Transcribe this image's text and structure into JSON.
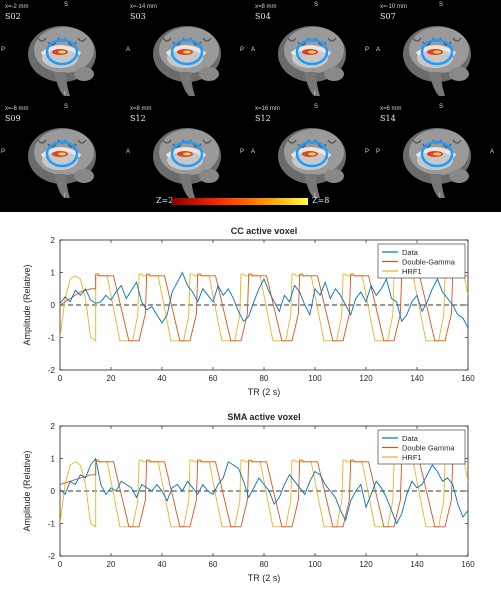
{
  "brain_panels": [
    {
      "coord": "x=-2 mm",
      "subject": "S02",
      "ori_left": "P",
      "ori_right": "",
      "ori_top": "S",
      "ori_bottom": "I"
    },
    {
      "coord": "x=-14 mm",
      "subject": "S03",
      "ori_left": "A",
      "ori_right": "P",
      "ori_top": "",
      "ori_bottom": ""
    },
    {
      "coord": "x=8 mm",
      "subject": "S04",
      "ori_left": "A",
      "ori_right": "P",
      "ori_top": "S",
      "ori_bottom": "I"
    },
    {
      "coord": "x=-10 mm",
      "subject": "S07",
      "ori_left": "A",
      "ori_right": "",
      "ori_top": "S",
      "ori_bottom": ""
    },
    {
      "coord": "x=-6 mm",
      "subject": "S09",
      "ori_left": "P",
      "ori_right": "",
      "ori_top": "S",
      "ori_bottom": "I"
    },
    {
      "coord": "x=8 mm",
      "subject": "S12",
      "ori_left": "A",
      "ori_right": "P",
      "ori_top": "",
      "ori_bottom": ""
    },
    {
      "coord": "x=16 mm",
      "subject": "S12",
      "ori_left": "A",
      "ori_right": "P",
      "ori_top": "S",
      "ori_bottom": "I"
    },
    {
      "coord": "x=6 mm",
      "subject": "S14",
      "ori_left": "P",
      "ori_right": "A",
      "ori_top": "S",
      "ori_bottom": "I"
    }
  ],
  "colorbar": {
    "min_label": "Z=2",
    "max_label": "Z=8",
    "colors": [
      "#8b0000",
      "#ff2a00",
      "#ff9900",
      "#ffff40"
    ]
  },
  "chart_data": [
    {
      "type": "line",
      "title": "CC active voxel",
      "xlabel": "TR (2 s)",
      "ylabel": "Amplitude (Relative)",
      "xlim": [
        0,
        160
      ],
      "ylim": [
        -2,
        2
      ],
      "xticks": [
        0,
        20,
        40,
        60,
        80,
        100,
        120,
        140,
        160
      ],
      "yticks": [
        -2,
        -1,
        0,
        1,
        2
      ],
      "legend_position": "top-right",
      "baseline": 0,
      "series": [
        {
          "name": "Data",
          "color": "#0072bd",
          "x": [
            0,
            2,
            4,
            6,
            8,
            10,
            12,
            14,
            16,
            18,
            20,
            22,
            24,
            26,
            28,
            30,
            32,
            34,
            36,
            38,
            40,
            42,
            44,
            46,
            48,
            50,
            52,
            54,
            56,
            58,
            60,
            62,
            64,
            66,
            68,
            70,
            72,
            74,
            76,
            78,
            80,
            82,
            84,
            86,
            88,
            90,
            92,
            94,
            96,
            98,
            100,
            102,
            104,
            106,
            108,
            110,
            112,
            114,
            116,
            118,
            120,
            122,
            124,
            126,
            128,
            130,
            132,
            134,
            136,
            138,
            140,
            142,
            144,
            146,
            148,
            150,
            152,
            154,
            156,
            158,
            160
          ],
          "y": [
            0.05,
            0.25,
            0.1,
            0.45,
            0.3,
            0.5,
            0.15,
            0.05,
            0.1,
            0.3,
            0.15,
            0.4,
            0.6,
            0.2,
            0.45,
            0.7,
            0.1,
            -0.15,
            -0.05,
            -0.3,
            -0.55,
            -0.3,
            0.4,
            0.7,
            1.0,
            0.6,
            0.4,
            0.1,
            0.5,
            0.3,
            0.1,
            0.6,
            0.3,
            0.5,
            0.2,
            -0.2,
            -0.5,
            -0.35,
            0.1,
            0.5,
            0.8,
            0.4,
            0.1,
            -0.2,
            0.3,
            0.1,
            0.6,
            0.4,
            0.0,
            -0.3,
            0.5,
            0.3,
            0.7,
            0.2,
            0.5,
            0.3,
            0.0,
            -0.3,
            0.2,
            0.4,
            0.1,
            0.6,
            0.3,
            0.5,
            0.8,
            0.2,
            0.1,
            -0.5,
            -0.3,
            0.1,
            0.3,
            -0.2,
            0.1,
            0.5,
            0.8,
            0.4,
            0.2,
            0.0,
            -0.3,
            -0.4,
            -0.7
          ]
        },
        {
          "name": "Double-Gamma",
          "color": "#d95319",
          "x": [
            0,
            2,
            4,
            6,
            8,
            10,
            12,
            14
          ],
          "y": [
            0.0,
            0.1,
            0.2,
            0.3,
            0.4,
            0.45,
            0.5,
            0.5
          ],
          "phase": 14,
          "lag": 6,
          "period": 20
        },
        {
          "name": "HRF1",
          "color": "#edb120",
          "x": [
            0,
            2,
            4,
            6,
            8,
            10,
            12,
            14
          ],
          "y": [
            -1.0,
            0.2,
            0.8,
            0.9,
            0.8,
            0.2,
            -1.0,
            -1.1
          ],
          "phase": 11,
          "lag": 5,
          "period": 20
        }
      ]
    },
    {
      "type": "line",
      "title": "SMA active voxel",
      "xlabel": "TR (2 s)",
      "ylabel": "Amplitude (Relative)",
      "xlim": [
        0,
        160
      ],
      "ylim": [
        -2,
        2
      ],
      "xticks": [
        0,
        20,
        40,
        60,
        80,
        100,
        120,
        140,
        160
      ],
      "yticks": [
        -2,
        -1,
        0,
        1,
        2
      ],
      "legend_position": "top-right",
      "baseline": 0,
      "series": [
        {
          "name": "Data",
          "color": "#0072bd",
          "x": [
            0,
            2,
            4,
            6,
            8,
            10,
            12,
            14,
            16,
            18,
            20,
            22,
            24,
            26,
            28,
            30,
            32,
            34,
            36,
            38,
            40,
            42,
            44,
            46,
            48,
            50,
            52,
            54,
            56,
            58,
            60,
            62,
            64,
            66,
            68,
            70,
            72,
            74,
            76,
            78,
            80,
            82,
            84,
            86,
            88,
            90,
            92,
            94,
            96,
            98,
            100,
            102,
            104,
            106,
            108,
            110,
            112,
            114,
            116,
            118,
            120,
            122,
            124,
            126,
            128,
            130,
            132,
            134,
            136,
            138,
            140,
            142,
            144,
            146,
            148,
            150,
            152,
            154,
            156,
            158,
            160
          ],
          "y": [
            0.05,
            -0.1,
            0.3,
            0.2,
            0.5,
            0.4,
            0.8,
            1.0,
            0.2,
            -0.1,
            0.1,
            0.0,
            0.3,
            0.2,
            0.1,
            -0.2,
            0.2,
            0.1,
            0.0,
            0.2,
            0.0,
            -0.3,
            0.1,
            0.2,
            0.0,
            0.3,
            0.1,
            -0.1,
            0.2,
            0.0,
            -0.1,
            0.2,
            0.4,
            0.9,
            0.8,
            0.7,
            0.3,
            -0.2,
            0.1,
            0.4,
            0.2,
            0.0,
            -0.4,
            -0.2,
            0.2,
            0.5,
            0.3,
            0.1,
            -0.1,
            0.3,
            0.6,
            0.5,
            0.2,
            0.0,
            -0.2,
            -0.6,
            -0.9,
            -0.3,
            0.0,
            0.2,
            -0.5,
            -0.1,
            0.3,
            0.1,
            -0.2,
            -0.6,
            -1.0,
            -0.7,
            -0.1,
            0.3,
            0.1,
            0.2,
            0.5,
            0.8,
            0.6,
            0.3,
            0.4,
            0.2,
            -0.4,
            -0.8,
            -0.6
          ]
        },
        {
          "name": "Double Gamma",
          "color": "#d95319",
          "x": [
            0,
            2,
            4,
            6,
            8,
            10,
            12,
            14
          ],
          "y": [
            0.2,
            0.25,
            0.3,
            0.35,
            0.4,
            0.45,
            0.5,
            0.5
          ],
          "phase": 14,
          "lag": 6,
          "period": 20
        },
        {
          "name": "HRF1",
          "color": "#edb120",
          "x": [
            0,
            2,
            4,
            6,
            8,
            10,
            12,
            14
          ],
          "y": [
            -1.0,
            0.2,
            0.8,
            0.9,
            0.8,
            0.2,
            -1.0,
            -1.1
          ],
          "phase": 11,
          "lag": 5,
          "period": 20
        }
      ]
    }
  ]
}
